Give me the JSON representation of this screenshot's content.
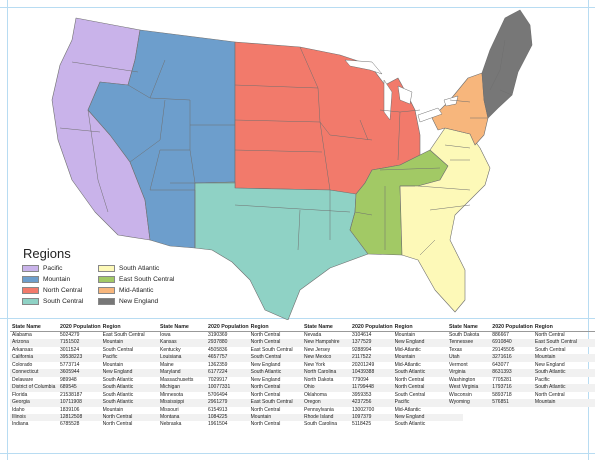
{
  "legend": {
    "title": "Regions",
    "items": [
      {
        "label": "Pacific",
        "color": "#c9b3ea"
      },
      {
        "label": "South Atlantic",
        "color": "#fdf9b8"
      },
      {
        "label": "Mountain",
        "color": "#6d9ecc"
      },
      {
        "label": "East South Central",
        "color": "#a2c965"
      },
      {
        "label": "North Central",
        "color": "#f27a6b"
      },
      {
        "label": "Mid-Atlantic",
        "color": "#f7b67c"
      },
      {
        "label": "South Central",
        "color": "#8fd2c5"
      },
      {
        "label": "New England",
        "color": "#777777"
      }
    ]
  },
  "table": {
    "headers": [
      "State Name",
      "2020 Population",
      "Region"
    ],
    "columns": [
      [
        [
          "Alabama",
          "5024279",
          "East South Central"
        ],
        [
          "Arizona",
          "7151502",
          "Mountain"
        ],
        [
          "Arkansas",
          "3011524",
          "South Central"
        ],
        [
          "California",
          "39538223",
          "Pacific"
        ],
        [
          "Colorado",
          "5773714",
          "Mountain"
        ],
        [
          "Connecticut",
          "3605944",
          "New England"
        ],
        [
          "Delaware",
          "989948",
          "South Atlantic"
        ],
        [
          "District of Columbia",
          "689545",
          "South Atlantic"
        ],
        [
          "Florida",
          "21538187",
          "South Atlantic"
        ],
        [
          "Georgia",
          "10711908",
          "South Atlantic"
        ],
        [
          "Idaho",
          "1839106",
          "Mountain"
        ],
        [
          "Illinois",
          "12812508",
          "North Central"
        ],
        [
          "Indiana",
          "6785528",
          "North Central"
        ]
      ],
      [
        [
          "Iowa",
          "3190369",
          "North Central"
        ],
        [
          "Kansas",
          "2937880",
          "North Central"
        ],
        [
          "Kentucky",
          "4505836",
          "East South Central"
        ],
        [
          "Louisiana",
          "4657757",
          "South Central"
        ],
        [
          "Maine",
          "1362359",
          "New England"
        ],
        [
          "Maryland",
          "6177224",
          "South Atlantic"
        ],
        [
          "Massachusetts",
          "7029917",
          "New England"
        ],
        [
          "Michigan",
          "10077331",
          "North Central"
        ],
        [
          "Minnesota",
          "5706494",
          "North Central"
        ],
        [
          "Mississippi",
          "2961279",
          "East South Central"
        ],
        [
          "Missouri",
          "6154913",
          "North Central"
        ],
        [
          "Montana",
          "1084225",
          "Mountain"
        ],
        [
          "Nebraska",
          "1961504",
          "North Central"
        ]
      ],
      [
        [
          "Nevada",
          "3104614",
          "Mountain"
        ],
        [
          "New Hampshire",
          "1377529",
          "New England"
        ],
        [
          "New Jersey",
          "9288994",
          "Mid-Atlantic"
        ],
        [
          "New Mexico",
          "2117522",
          "Mountain"
        ],
        [
          "New York",
          "20201249",
          "Mid-Atlantic"
        ],
        [
          "North Carolina",
          "10439388",
          "South Atlantic"
        ],
        [
          "North Dakota",
          "779094",
          "North Central"
        ],
        [
          "Ohio",
          "11799448",
          "North Central"
        ],
        [
          "Oklahoma",
          "3959353",
          "South Central"
        ],
        [
          "Oregon",
          "4237256",
          "Pacific"
        ],
        [
          "Pennsylvania",
          "13002700",
          "Mid-Atlantic"
        ],
        [
          "Rhode Island",
          "1097379",
          "New England"
        ],
        [
          "South Carolina",
          "5118425",
          "South Atlantic"
        ]
      ],
      [
        [
          "South Dakota",
          "886667",
          "North Central"
        ],
        [
          "Tennessee",
          "6910840",
          "East South Central"
        ],
        [
          "Texas",
          "29145505",
          "South Central"
        ],
        [
          "Utah",
          "3271616",
          "Mountain"
        ],
        [
          "Vermont",
          "643077",
          "New England"
        ],
        [
          "Virginia",
          "8631393",
          "South Atlantic"
        ],
        [
          "Washington",
          "7705281",
          "Pacific"
        ],
        [
          "West Virginia",
          "1793716",
          "South Atlantic"
        ],
        [
          "Wisconsin",
          "5893718",
          "North Central"
        ],
        [
          "Wyoming",
          "576851",
          "Mountain"
        ]
      ]
    ]
  }
}
